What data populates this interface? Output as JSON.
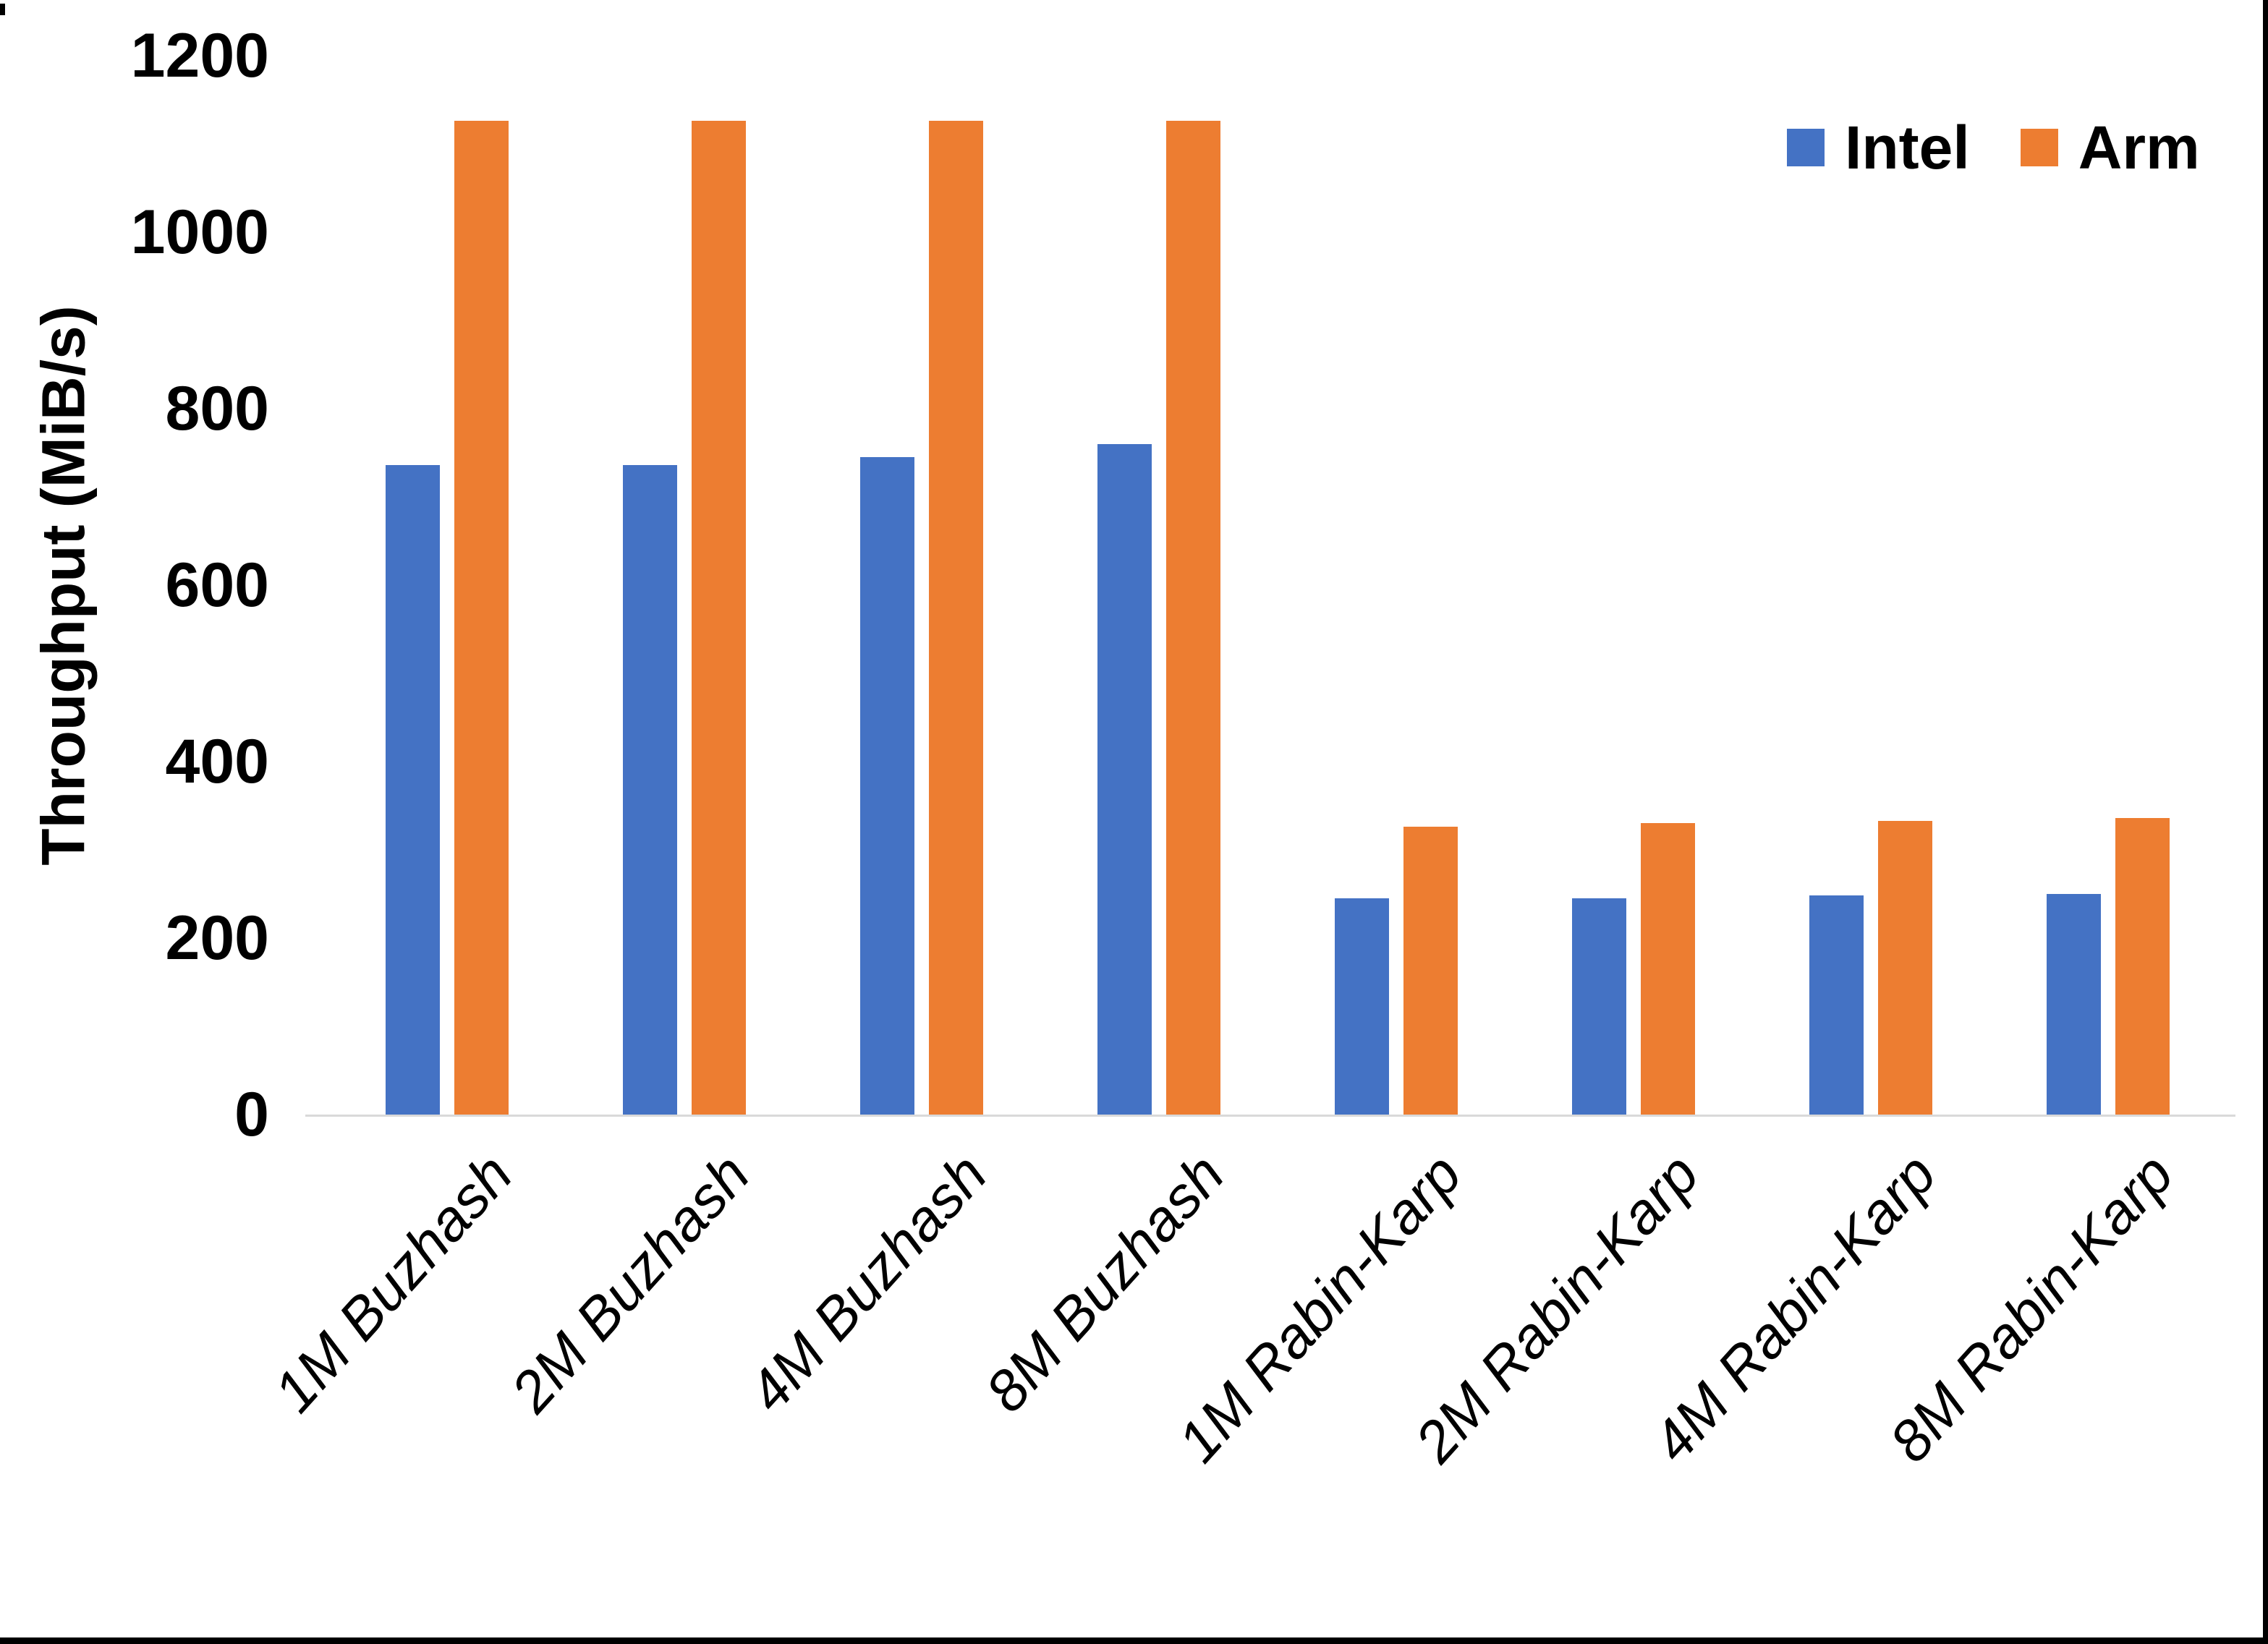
{
  "chart_data": {
    "type": "bar",
    "title": "",
    "xlabel": "",
    "ylabel": "Throughput (MiB/s)",
    "ylim": [
      0,
      1200
    ],
    "yticks": [
      0,
      200,
      400,
      600,
      800,
      1000,
      1200
    ],
    "grid": false,
    "legend_position": "top-right",
    "categories": [
      "1M Buzhash",
      "2M Buzhash",
      "4M Buzhash",
      "8M Buzhash",
      "1M Rabin-Karp",
      "2M Rabin-Karp",
      "4M Rabin-Karp",
      "8M Rabin-Karp"
    ],
    "series": [
      {
        "name": "Intel",
        "color": "#4472C4",
        "values": [
          736,
          736,
          745,
          760,
          245,
          245,
          248,
          250
        ]
      },
      {
        "name": "Arm",
        "color": "#ED7D31",
        "values": [
          1126,
          1126,
          1126,
          1126,
          326,
          330,
          333,
          336
        ]
      }
    ],
    "axis_line_color": "#D9D9D9"
  },
  "frame": {
    "background": "#FFFFFF",
    "border_color": "#000000"
  }
}
